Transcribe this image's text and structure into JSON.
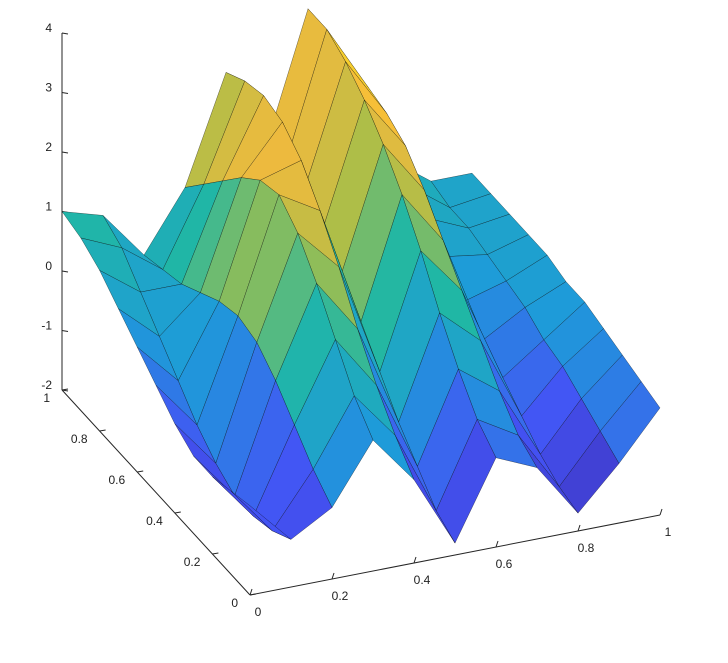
{
  "chart_data": {
    "type": "surface",
    "x": [
      0,
      0.1,
      0.2,
      0.3,
      0.4,
      0.5,
      0.6,
      0.7,
      0.8,
      0.9,
      1
    ],
    "y": [
      0,
      0.1,
      0.2,
      0.3,
      0.4,
      0.5,
      0.6,
      0.7,
      0.8,
      0.9,
      1
    ],
    "z": [
      [
        -0.5,
        -1.2,
        -0.8,
        0.2,
        -0.6,
        -1.8,
        -0.5,
        -0.8,
        -1.7,
        -1.0,
        -0.2
      ],
      [
        -0.6,
        -1.4,
        -0.5,
        0.6,
        -0.2,
        -1.6,
        -0.2,
        -0.6,
        -1.6,
        -0.8,
        -0.1
      ],
      [
        -0.7,
        -1.5,
        -0.1,
        1.2,
        0.3,
        -1.2,
        0.3,
        -0.2,
        -1.4,
        -0.6,
        0.0
      ],
      [
        -0.7,
        -1.5,
        0.3,
        1.8,
        0.9,
        -0.8,
        0.9,
        0.3,
        -1.1,
        -0.4,
        0.1
      ],
      [
        -0.5,
        -1.3,
        0.6,
        2.3,
        1.6,
        -0.3,
        1.6,
        0.8,
        -0.8,
        -0.3,
        0.2
      ],
      [
        -0.2,
        -1.0,
        0.7,
        2.6,
        2.2,
        0.2,
        2.2,
        1.3,
        -0.5,
        -0.1,
        0.2
      ],
      [
        0.1,
        -0.6,
        0.6,
        2.5,
        2.7,
        0.7,
        2.7,
        1.8,
        -0.2,
        0.0,
        0.3
      ],
      [
        0.4,
        -0.2,
        0.4,
        2.2,
        3.0,
        1.1,
        3.1,
        2.2,
        0.2,
        0.1,
        0.3
      ],
      [
        0.7,
        0.2,
        0.2,
        1.8,
        3.1,
        1.4,
        3.4,
        2.4,
        0.5,
        0.2,
        0.3
      ],
      [
        0.9,
        0.6,
        0.1,
        1.4,
        3.0,
        1.5,
        3.6,
        2.5,
        0.7,
        0.2,
        0.3
      ],
      [
        1.0,
        0.8,
        0.0,
        1.0,
        2.8,
        1.5,
        3.6,
        2.5,
        0.8,
        0.3,
        0.3
      ]
    ],
    "xlim": [
      0,
      1
    ],
    "ylim": [
      0,
      1
    ],
    "zlim": [
      -2,
      4
    ],
    "xticks": [
      0,
      0.2,
      0.4,
      0.6,
      0.8,
      1
    ],
    "yticks": [
      0,
      0.2,
      0.4,
      0.6,
      0.8,
      1
    ],
    "zticks": [
      -2,
      -1,
      0,
      1,
      2,
      3,
      4
    ],
    "colormap": [
      "#3e26a8",
      "#4354f5",
      "#1e9bd9",
      "#20b7a5",
      "#a5be4a",
      "#f6ba3c",
      "#f9fb0e"
    ]
  }
}
